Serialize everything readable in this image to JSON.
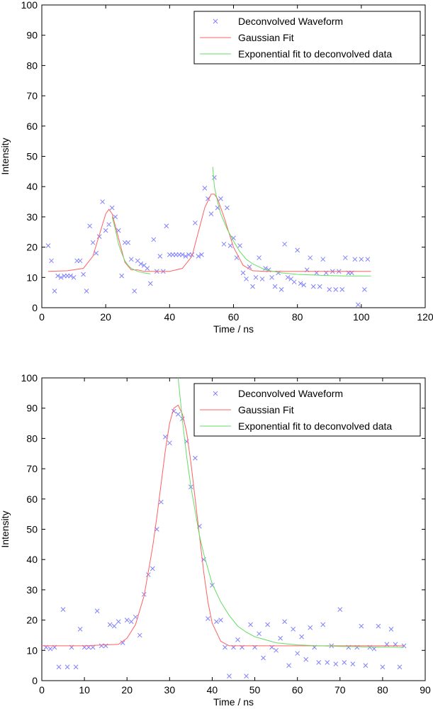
{
  "colors": {
    "marker": "#8080ff",
    "gaussian": "#ff6060",
    "exponential": "#66dd66"
  },
  "chart_data": [
    {
      "type": "scatter",
      "xlabel": "Time / ns",
      "ylabel": "Intensity",
      "xlim": [
        0,
        120
      ],
      "ylim": [
        0,
        100
      ],
      "xticks": [
        0,
        20,
        40,
        60,
        80,
        100,
        120
      ],
      "yticks": [
        0,
        10,
        20,
        30,
        40,
        50,
        60,
        70,
        80,
        90,
        100
      ],
      "legend_position": "top-right",
      "series": [
        {
          "name": "Deconvolved Waveform",
          "kind": "markers",
          "x": [
            2,
            3,
            4,
            5,
            6,
            7,
            8,
            9,
            10,
            11,
            12,
            13,
            14,
            15,
            16,
            17,
            18,
            19,
            20,
            21,
            22,
            23,
            24,
            25,
            26,
            27,
            28,
            29,
            30,
            31,
            32,
            33,
            34,
            35,
            36,
            37,
            38,
            39,
            40,
            41,
            42,
            43,
            44,
            45,
            46,
            47,
            48,
            49,
            50,
            51,
            52,
            53,
            54,
            55,
            56,
            57,
            58,
            59,
            60,
            61,
            62,
            63,
            64,
            65,
            66,
            67,
            68,
            69,
            70,
            71,
            72,
            73,
            74,
            75,
            76,
            77,
            78,
            79,
            80,
            81,
            82,
            83,
            84,
            85,
            86,
            87,
            88,
            89,
            90,
            91,
            92,
            93,
            94,
            95,
            96,
            97,
            98,
            99,
            100,
            101,
            102
          ],
          "y": [
            20.5,
            15.5,
            5.5,
            10.5,
            10,
            10.5,
            10.5,
            10.5,
            10,
            15.5,
            15.5,
            11,
            5.5,
            27,
            21.5,
            18,
            23.5,
            35,
            25.5,
            27.5,
            33,
            30,
            25.5,
            10.5,
            21.5,
            21.5,
            16,
            5.5,
            15.5,
            14.5,
            14,
            13,
            8,
            22.5,
            12,
            17,
            12,
            27,
            17.5,
            17.5,
            17.5,
            17.5,
            17.5,
            17,
            17.5,
            17.5,
            28,
            17,
            17.5,
            39.5,
            36,
            31,
            43,
            33,
            36,
            21,
            33,
            20.5,
            23,
            16.5,
            20.5,
            11.5,
            9.5,
            13.5,
            7,
            10,
            16.5,
            9.5,
            13,
            12.5,
            10,
            7,
            11.5,
            6,
            21,
            10,
            9.5,
            8.5,
            19,
            8,
            7.5,
            12.5,
            16.5,
            7,
            11.5,
            7,
            16,
            11.5,
            6,
            12,
            6,
            12,
            6,
            16.5,
            11.5,
            11.5,
            16,
            1,
            16,
            6,
            16
          ]
        },
        {
          "name": "Gaussian Fit",
          "kind": "line",
          "x": [
            2,
            8,
            13,
            16,
            18,
            20,
            21,
            22,
            24,
            26,
            28,
            30,
            32,
            35,
            40,
            44,
            47,
            49,
            51,
            53,
            54,
            55,
            57,
            60,
            63,
            66,
            70,
            80,
            90,
            100,
            103
          ],
          "y": [
            12,
            12.2,
            13,
            17,
            24,
            31,
            32.5,
            31,
            23,
            15,
            12.5,
            12.5,
            12,
            12,
            12,
            13,
            17,
            25,
            33,
            37.5,
            37.5,
            36,
            30,
            20,
            14,
            12.2,
            12,
            12,
            12,
            12,
            12
          ]
        },
        {
          "name": "Exponential fit to deconvolved data",
          "kind": "line",
          "segments": [
            {
              "x": [
                22,
                23,
                24,
                25,
                26,
                27,
                28,
                29,
                30,
                32,
                34
              ],
              "y": [
                30,
                26,
                21,
                18,
                15.5,
                14,
                13,
                12.5,
                12,
                11.5,
                11.2
              ]
            },
            {
              "x": [
                53.5,
                54,
                55,
                56,
                58,
                60,
                62,
                64,
                66,
                68,
                70,
                75,
                80,
                85,
                90,
                95,
                100,
                103
              ],
              "y": [
                46.5,
                40,
                35,
                31,
                26,
                22,
                18.5,
                16,
                14.5,
                13.5,
                12.5,
                11.5,
                11,
                10.8,
                10.6,
                10.5,
                10.5,
                10.5
              ]
            }
          ]
        }
      ]
    },
    {
      "type": "scatter",
      "xlabel": "Time / ns",
      "ylabel": "Intensity",
      "xlim": [
        0,
        90
      ],
      "ylim": [
        0,
        100
      ],
      "xticks": [
        0,
        10,
        20,
        30,
        40,
        50,
        60,
        70,
        80,
        90
      ],
      "yticks": [
        0,
        10,
        20,
        30,
        40,
        50,
        60,
        70,
        80,
        90,
        100
      ],
      "legend_position": "top-right",
      "series": [
        {
          "name": "Deconvolved Waveform",
          "kind": "markers",
          "x": [
            1,
            2,
            3,
            4,
            5,
            6,
            7,
            8,
            9,
            10,
            11,
            12,
            13,
            14,
            15,
            16,
            17,
            18,
            19,
            20,
            21,
            22,
            23,
            24,
            25,
            26,
            27,
            28,
            29,
            30,
            31,
            32,
            33,
            34,
            35,
            36,
            37,
            38,
            39,
            40,
            41,
            42,
            43,
            44,
            45,
            46,
            47,
            48,
            49,
            50,
            51,
            52,
            53,
            54,
            55,
            56,
            57,
            58,
            59,
            60,
            61,
            62,
            63,
            64,
            65,
            66,
            67,
            68,
            69,
            70,
            71,
            72,
            73,
            74,
            75,
            76,
            77,
            78,
            79,
            80,
            81,
            82,
            83,
            84,
            85
          ],
          "y": [
            11,
            10.5,
            11,
            4.5,
            23.5,
            4.5,
            11,
            4.5,
            17,
            11,
            11,
            11,
            23,
            11.5,
            11.5,
            18.5,
            18,
            19.5,
            12.5,
            20,
            19.5,
            21,
            15,
            28.5,
            35,
            37,
            50,
            59,
            80.5,
            78.5,
            89,
            88,
            86.5,
            79,
            64,
            73.5,
            51,
            40,
            20.5,
            31.5,
            19.5,
            20,
            11,
            1.5,
            11,
            13.5,
            11,
            1.5,
            18.5,
            11,
            15.5,
            7.5,
            18.5,
            11,
            10,
            14,
            19.5,
            5,
            17,
            9,
            14.5,
            7,
            17.5,
            11,
            6,
            18.5,
            6,
            11.5,
            5.5,
            23.5,
            6,
            11,
            5.5,
            11,
            18,
            5,
            11,
            10.5,
            18,
            4.5,
            12,
            17,
            12,
            4.5,
            11.5
          ]
        },
        {
          "name": "Gaussian Fit",
          "kind": "line",
          "x": [
            0,
            10,
            18,
            20,
            22,
            24,
            26,
            27,
            28,
            29,
            30,
            31,
            32,
            33,
            34,
            35,
            36,
            37,
            38,
            39,
            40,
            42,
            44,
            46,
            50,
            60,
            70,
            80,
            85
          ],
          "y": [
            11.5,
            11.5,
            12,
            14,
            18.5,
            28,
            44,
            54,
            65,
            76,
            85,
            90,
            91,
            88,
            82,
            72,
            60,
            48,
            36,
            26,
            19,
            13,
            11.5,
            11.5,
            11.5,
            11.5,
            11.5,
            11.5,
            11.5
          ]
        },
        {
          "name": "Exponential fit to deconvolved data",
          "kind": "line",
          "x": [
            32,
            33,
            34,
            35,
            36,
            37,
            38,
            39,
            40,
            42,
            44,
            46,
            48,
            50,
            55,
            60,
            65,
            70,
            75,
            80,
            85
          ],
          "y": [
            100,
            86,
            74,
            64,
            56,
            48,
            42,
            37,
            32,
            26,
            21.5,
            18,
            16,
            14.5,
            12.5,
            11.8,
            11.5,
            11.3,
            11.2,
            11.1,
            11
          ]
        }
      ]
    }
  ]
}
